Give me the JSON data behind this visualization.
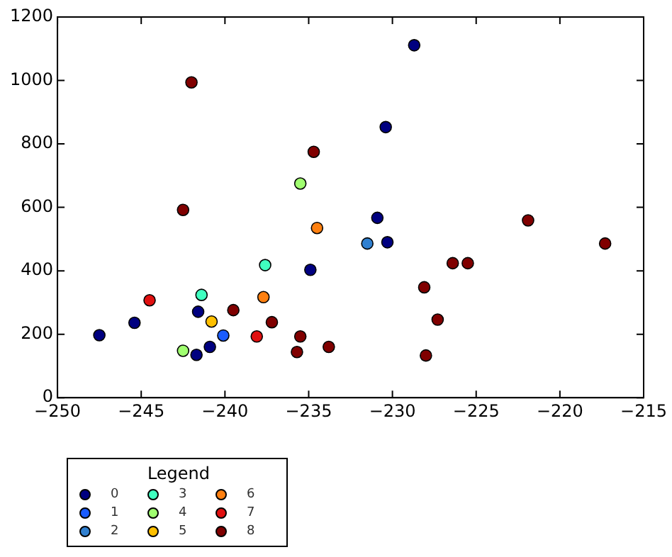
{
  "chart_data": {
    "type": "scatter",
    "legend_title": "Legend",
    "legend": "bottom left",
    "grid": false,
    "marker": "circle",
    "xlim": [
      -250,
      -215
    ],
    "xticks": [
      -250,
      -245,
      -240,
      -235,
      -230,
      -225,
      -220,
      -215
    ],
    "ylim": [
      0,
      1200
    ],
    "yticks": [
      0,
      200,
      400,
      600,
      800,
      1000,
      1200
    ],
    "series": [
      {
        "name": "0",
        "color": "#000080",
        "x": [
          -234.9,
          -241.6,
          -245.4,
          -247.5,
          -240.9,
          -241.7,
          -228.7,
          -230.4,
          -230.9,
          -230.3
        ],
        "values": [
          403,
          271,
          236,
          197,
          160,
          135,
          1111,
          853,
          567,
          490
        ]
      },
      {
        "name": "1",
        "color": "#1a5cff",
        "x": [
          -240.1
        ],
        "values": [
          196
        ]
      },
      {
        "name": "2",
        "color": "#3080d0",
        "x": [
          -231.5
        ],
        "values": [
          486
        ]
      },
      {
        "name": "3",
        "color": "#40ffc0",
        "x": [
          -237.6,
          -241.4
        ],
        "values": [
          418,
          324
        ]
      },
      {
        "name": "4",
        "color": "#a0ff70",
        "x": [
          -235.5,
          -242.5
        ],
        "values": [
          675,
          148
        ]
      },
      {
        "name": "5",
        "color": "#ffc000",
        "x": [
          -240.8
        ],
        "values": [
          240
        ]
      },
      {
        "name": "6",
        "color": "#ff8010",
        "x": [
          -234.5,
          -237.7
        ],
        "values": [
          535,
          317
        ]
      },
      {
        "name": "7",
        "color": "#e01010",
        "x": [
          -244.5,
          -238.1
        ],
        "values": [
          307,
          193
        ]
      },
      {
        "name": "8",
        "color": "#800000",
        "x": [
          -242,
          -234.7,
          -242.5,
          -239.5,
          -237.2,
          -235.5,
          -235.7,
          -233.8,
          -221.9,
          -217.3,
          -226.4,
          -225.5,
          -228.1,
          -227.3,
          -228
        ],
        "values": [
          994,
          775,
          592,
          276,
          238,
          193,
          144,
          160,
          559,
          486,
          424,
          424,
          348,
          246,
          133
        ]
      }
    ]
  }
}
